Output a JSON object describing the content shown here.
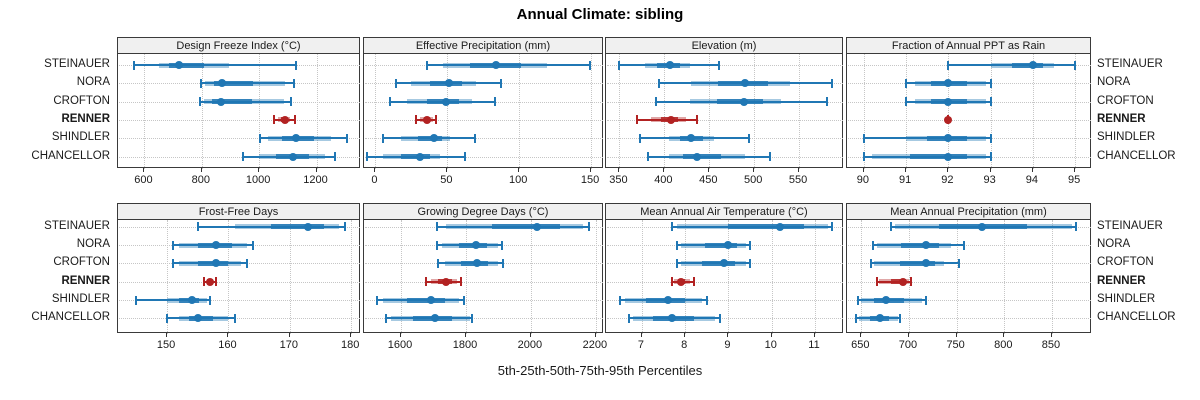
{
  "title": "Annual Climate: sibling",
  "caption": "5th-25th-50th-75th-95th Percentiles",
  "sites": [
    "STEINAUER",
    "NORA",
    "CROFTON",
    "RENNER",
    "SHINDLER",
    "CHANCELLOR"
  ],
  "highlight_site": "RENNER",
  "colors": {
    "series": "#2077b4",
    "highlight": "#b22222",
    "strip_bg": "#f0f0f0",
    "panel_border": "#3a3a3a",
    "grid": "#c6c6c6",
    "text": "#1a1a1a"
  },
  "chart_data": {
    "type": "dotplot",
    "subtype": "percentile-intervals",
    "percentiles": [
      "5th",
      "25th",
      "50th",
      "75th",
      "95th"
    ],
    "grid": "dotted",
    "legend": "none",
    "panels": [
      {
        "title": "Design Freeze Index (°C)",
        "row": 0,
        "col": 0,
        "xlim": [
          508,
          1355
        ],
        "ticks": [
          600,
          800,
          1000,
          1200
        ],
        "series": [
          {
            "site": "STEINAUER",
            "values": [
              563,
              652,
              722,
              896,
              1130
            ]
          },
          {
            "site": "NORA",
            "values": [
              798,
              812,
              870,
              1090,
              1122
            ]
          },
          {
            "site": "CROFTON",
            "values": [
              793,
              808,
              866,
              1085,
              1112
            ]
          },
          {
            "site": "RENNER",
            "values": [
              1053,
              1066,
              1089,
              1108,
              1126
            ]
          },
          {
            "site": "SHINDLER",
            "values": [
              1003,
              1030,
              1130,
              1250,
              1307
            ]
          },
          {
            "site": "CHANCELLOR",
            "values": [
              943,
              1000,
              1119,
              1230,
              1264
            ]
          }
        ]
      },
      {
        "title": "Effective Precipitation (mm)",
        "row": 0,
        "col": 1,
        "xlim": [
          -8,
          159
        ],
        "ticks": [
          0,
          50,
          100,
          150
        ],
        "series": [
          {
            "site": "STEINAUER",
            "values": [
              36,
              47,
              84,
              119,
              149
            ]
          },
          {
            "site": "NORA",
            "values": [
              14,
              25,
              51,
              70,
              87
            ]
          },
          {
            "site": "CROFTON",
            "values": [
              10,
              22,
              49,
              67,
              83
            ]
          },
          {
            "site": "RENNER",
            "values": [
              28,
              31,
              36,
              40,
              42
            ]
          },
          {
            "site": "SHINDLER",
            "values": [
              5,
              18,
              41,
              52,
              69
            ]
          },
          {
            "site": "CHANCELLOR",
            "values": [
              -6,
              5,
              31,
              45,
              62
            ]
          }
        ]
      },
      {
        "title": "Elevation (m)",
        "row": 0,
        "col": 2,
        "xlim": [
          335,
          600
        ],
        "ticks": [
          350,
          400,
          450,
          500,
          550
        ],
        "series": [
          {
            "site": "STEINAUER",
            "values": [
              349,
              378,
              406,
              428,
              461
            ]
          },
          {
            "site": "NORA",
            "values": [
              394,
              430,
              490,
              540,
              587
            ]
          },
          {
            "site": "CROFTON",
            "values": [
              391,
              428,
              489,
              530,
              581
            ]
          },
          {
            "site": "RENNER",
            "values": [
              370,
              385,
              407,
              424,
              436
            ]
          },
          {
            "site": "SHINDLER",
            "values": [
              373,
              405,
              430,
              455,
              494
            ]
          },
          {
            "site": "CHANCELLOR",
            "values": [
              382,
              405,
              436,
              490,
              518
            ]
          }
        ]
      },
      {
        "title": "Fraction of Annual PPT as Rain",
        "row": 0,
        "col": 3,
        "xlim": [
          89.6,
          95.4
        ],
        "ticks": [
          90,
          91,
          92,
          93,
          94,
          95
        ],
        "series": [
          {
            "site": "STEINAUER",
            "values": [
              92,
              93,
              94,
              94.5,
              95
            ]
          },
          {
            "site": "NORA",
            "values": [
              91,
              91.2,
              92,
              92.9,
              93
            ]
          },
          {
            "site": "CROFTON",
            "values": [
              91,
              91.2,
              92,
              92.9,
              93
            ]
          },
          {
            "site": "RENNER",
            "values": [
              92,
              92,
              92,
              92,
              92
            ]
          },
          {
            "site": "SHINDLER",
            "values": [
              90,
              91,
              92,
              92.9,
              93
            ]
          },
          {
            "site": "CHANCELLOR",
            "values": [
              90,
              90.2,
              92,
              92.9,
              93
            ]
          }
        ]
      },
      {
        "title": "Frost-Free Days",
        "row": 1,
        "col": 0,
        "xlim": [
          142,
          181.6
        ],
        "ticks": [
          150,
          160,
          170,
          180
        ],
        "series": [
          {
            "site": "STEINAUER",
            "values": [
              155,
              161,
              173,
              178,
              179
            ]
          },
          {
            "site": "NORA",
            "values": [
              151,
              152,
              158,
              163,
              164
            ]
          },
          {
            "site": "CROFTON",
            "values": [
              151,
              152,
              158,
              162,
              163
            ]
          },
          {
            "site": "RENNER",
            "values": [
              156,
              156.5,
              157,
              157.5,
              158
            ]
          },
          {
            "site": "SHINDLER",
            "values": [
              145,
              150,
              154,
              156.5,
              157
            ]
          },
          {
            "site": "CHANCELLOR",
            "values": [
              150,
              152,
              155,
              160,
              161
            ]
          }
        ]
      },
      {
        "title": "Growing Degree Days (°C)",
        "row": 1,
        "col": 1,
        "xlim": [
          1486,
          2225
        ],
        "ticks": [
          1600,
          1800,
          2000,
          2200
        ],
        "series": [
          {
            "site": "STEINAUER",
            "values": [
              1710,
              1740,
              2020,
              2160,
              2180
            ]
          },
          {
            "site": "NORA",
            "values": [
              1710,
              1725,
              1830,
              1900,
              1910
            ]
          },
          {
            "site": "CROFTON",
            "values": [
              1715,
              1735,
              1835,
              1900,
              1915
            ]
          },
          {
            "site": "RENNER",
            "values": [
              1677,
              1692,
              1738,
              1773,
              1784
            ]
          },
          {
            "site": "SHINDLER",
            "values": [
              1527,
              1545,
              1692,
              1778,
              1794
            ]
          },
          {
            "site": "CHANCELLOR",
            "values": [
              1554,
              1570,
              1704,
              1812,
              1820
            ]
          }
        ]
      },
      {
        "title": "Mean Annual Air Temperature (°C)",
        "row": 1,
        "col": 2,
        "xlim": [
          6.17,
          11.67
        ],
        "ticks": [
          7,
          8,
          9,
          10,
          11
        ],
        "series": [
          {
            "site": "STEINAUER",
            "values": [
              7.7,
              7.8,
              10.2,
              11.3,
              11.4
            ]
          },
          {
            "site": "NORA",
            "values": [
              7.8,
              7.9,
              9.0,
              9.4,
              9.5
            ]
          },
          {
            "site": "CROFTON",
            "values": [
              7.8,
              7.9,
              8.9,
              9.4,
              9.5
            ]
          },
          {
            "site": "RENNER",
            "values": [
              7.7,
              7.75,
              7.9,
              8.1,
              8.2
            ]
          },
          {
            "site": "SHINDLER",
            "values": [
              6.5,
              6.6,
              7.6,
              8.4,
              8.5
            ]
          },
          {
            "site": "CHANCELLOR",
            "values": [
              6.7,
              6.8,
              7.7,
              8.7,
              8.8
            ]
          }
        ]
      },
      {
        "title": "Mean Annual Precipitation (mm)",
        "row": 1,
        "col": 3,
        "xlim": [
          635,
          892
        ],
        "ticks": [
          650,
          700,
          750,
          800,
          850
        ],
        "series": [
          {
            "site": "STEINAUER",
            "values": [
              681,
              685,
              777,
              871,
              875
            ]
          },
          {
            "site": "NORA",
            "values": [
              662,
              666,
              718,
              744,
              758
            ]
          },
          {
            "site": "CROFTON",
            "values": [
              660,
              663,
              718,
              737,
              752
            ]
          },
          {
            "site": "RENNER",
            "values": [
              666,
              669,
              694,
              700,
              702
            ]
          },
          {
            "site": "SHINDLER",
            "values": [
              647,
              650,
              676,
              714,
              718
            ]
          },
          {
            "site": "CHANCELLOR",
            "values": [
              644,
              648,
              670,
              688,
              691
            ]
          }
        ]
      }
    ]
  }
}
